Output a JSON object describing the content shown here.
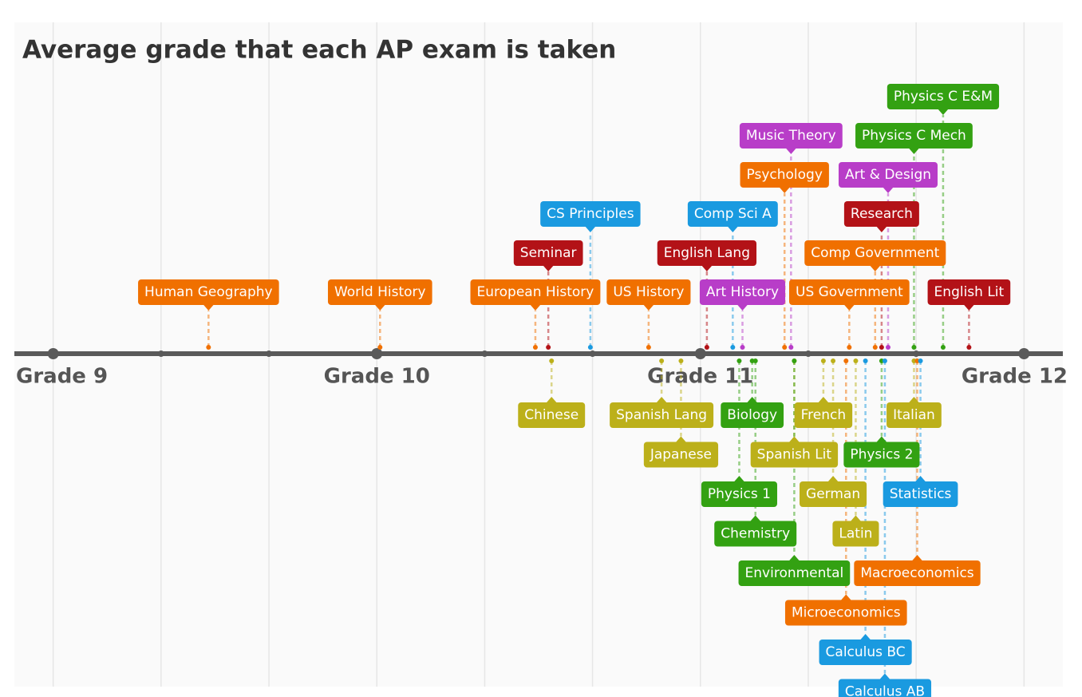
{
  "chart_data": {
    "type": "timeline",
    "title": "Average grade that each AP exam is taken",
    "xlim": [
      8.88,
      12.12
    ],
    "xticks": [
      {
        "value": 9,
        "label": "Grade 9"
      },
      {
        "value": 10,
        "label": "Grade 10"
      },
      {
        "value": 11,
        "label": "Grade 11"
      },
      {
        "value": 12,
        "label": "Grade 12"
      }
    ],
    "above": [
      {
        "label": "Human Geography",
        "x": 9.48,
        "color": "#f07000"
      },
      {
        "label": "World History",
        "x": 10.01,
        "color": "#f07000"
      },
      {
        "label": "European History",
        "x": 10.49,
        "color": "#f07000"
      },
      {
        "label": "Seminar",
        "x": 10.53,
        "color": "#b31217"
      },
      {
        "label": "CS Principles",
        "x": 10.66,
        "color": "#1a9ae0"
      },
      {
        "label": "US History",
        "x": 10.84,
        "color": "#f07000"
      },
      {
        "label": "English Lang",
        "x": 11.02,
        "color": "#b31217"
      },
      {
        "label": "Comp Sci A",
        "x": 11.1,
        "color": "#1a9ae0"
      },
      {
        "label": "Art History",
        "x": 11.13,
        "color": "#b83dc8"
      },
      {
        "label": "Psychology",
        "x": 11.26,
        "color": "#f07000"
      },
      {
        "label": "Music Theory",
        "x": 11.28,
        "color": "#b83dc8"
      },
      {
        "label": "US Government",
        "x": 11.46,
        "color": "#f07000"
      },
      {
        "label": "Comp Government",
        "x": 11.54,
        "color": "#f07000"
      },
      {
        "label": "Research",
        "x": 11.56,
        "color": "#b31217"
      },
      {
        "label": "Art & Design",
        "x": 11.58,
        "color": "#b83dc8"
      },
      {
        "label": "Physics C Mech",
        "x": 11.66,
        "color": "#33a112"
      },
      {
        "label": "Physics C E&M",
        "x": 11.75,
        "color": "#33a112"
      },
      {
        "label": "English Lit",
        "x": 11.83,
        "color": "#b31217"
      }
    ],
    "below": [
      {
        "label": "Chinese",
        "x": 10.54,
        "color": "#bcb01a"
      },
      {
        "label": "Spanish Lang",
        "x": 10.88,
        "color": "#bcb01a"
      },
      {
        "label": "Japanese",
        "x": 10.94,
        "color": "#bcb01a"
      },
      {
        "label": "Physics 1",
        "x": 11.12,
        "color": "#33a112"
      },
      {
        "label": "Biology",
        "x": 11.16,
        "color": "#33a112"
      },
      {
        "label": "Chemistry",
        "x": 11.17,
        "color": "#33a112"
      },
      {
        "label": "Spanish Lit",
        "x": 11.29,
        "color": "#bcb01a"
      },
      {
        "label": "Environmental",
        "x": 11.29,
        "color": "#33a112"
      },
      {
        "label": "French",
        "x": 11.38,
        "color": "#bcb01a"
      },
      {
        "label": "German",
        "x": 11.41,
        "color": "#bcb01a"
      },
      {
        "label": "Microeconomics",
        "x": 11.45,
        "color": "#f07000"
      },
      {
        "label": "Latin",
        "x": 11.48,
        "color": "#bcb01a"
      },
      {
        "label": "Calculus BC",
        "x": 11.51,
        "color": "#1a9ae0"
      },
      {
        "label": "Physics 2",
        "x": 11.56,
        "color": "#33a112"
      },
      {
        "label": "Calculus AB",
        "x": 11.57,
        "color": "#1a9ae0"
      },
      {
        "label": "Italian",
        "x": 11.66,
        "color": "#bcb01a"
      },
      {
        "label": "Macroeconomics",
        "x": 11.67,
        "color": "#f07000"
      },
      {
        "label": "Statistics",
        "x": 11.68,
        "color": "#1a9ae0"
      }
    ]
  }
}
